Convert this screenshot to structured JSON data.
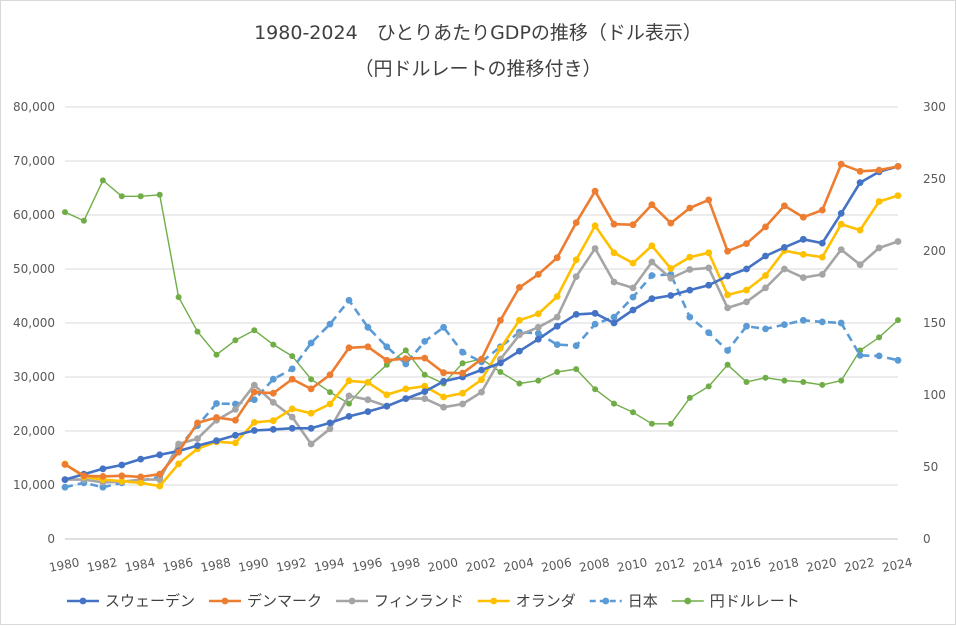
{
  "chart_data": {
    "type": "line",
    "title": "1980-2024　ひとりあたりGDPの推移（ドル表示）",
    "subtitle": "（円ドルレートの推移付き）",
    "x": [
      1980,
      1981,
      1982,
      1983,
      1984,
      1985,
      1986,
      1987,
      1988,
      1989,
      1990,
      1991,
      1992,
      1993,
      1994,
      1995,
      1996,
      1997,
      1998,
      1999,
      2000,
      2001,
      2002,
      2003,
      2004,
      2005,
      2006,
      2007,
      2008,
      2009,
      2010,
      2011,
      2012,
      2013,
      2014,
      2015,
      2016,
      2017,
      2018,
      2019,
      2020,
      2021,
      2022,
      2023,
      2024
    ],
    "x_tick_labels": [
      "1980",
      "1982",
      "1984",
      "1986",
      "1988",
      "1990",
      "1992",
      "1994",
      "1996",
      "1998",
      "2000",
      "2002",
      "2004",
      "2006",
      "2008",
      "2010",
      "2012",
      "2014",
      "2016",
      "2018",
      "2020",
      "2022",
      "2024"
    ],
    "y_left": {
      "range": [
        0,
        80000
      ],
      "ticks": [
        "0",
        "10,000",
        "20,000",
        "30,000",
        "40,000",
        "50,000",
        "60,000",
        "70,000",
        "80,000"
      ]
    },
    "y_right": {
      "range": [
        0,
        300
      ],
      "ticks": [
        "0",
        "50",
        "100",
        "150",
        "200",
        "250",
        "300"
      ]
    },
    "grid": true,
    "legend_position": "bottom",
    "series": [
      {
        "name": "スウェーデン",
        "axis": "left",
        "color": "#4472C4",
        "dash": false,
        "values": [
          11000,
          12000,
          13000,
          13700,
          14800,
          15600,
          16300,
          17300,
          18200,
          19200,
          20100,
          20300,
          20500,
          20500,
          21500,
          22700,
          23600,
          24600,
          26000,
          27300,
          29200,
          30000,
          31300,
          32600,
          34800,
          37000,
          39400,
          41600,
          41800,
          40000,
          42400,
          44500,
          45100,
          46100,
          47000,
          48700,
          50000,
          52400,
          54000,
          55500,
          54800,
          60300,
          66000,
          68000,
          69000
        ]
      },
      {
        "name": "デンマーク",
        "axis": "left",
        "color": "#ED7D31",
        "dash": false,
        "values": [
          13800,
          11700,
          11600,
          11700,
          11500,
          12000,
          16100,
          21500,
          22500,
          22000,
          27200,
          27000,
          29600,
          27800,
          30400,
          35400,
          35600,
          33100,
          33400,
          33500,
          30800,
          30700,
          33300,
          40500,
          46600,
          49000,
          52100,
          58600,
          64400,
          58300,
          58200,
          61900,
          58500,
          61300,
          62800,
          53300,
          54700,
          57800,
          61700,
          59600,
          60900,
          69400,
          68100,
          68300,
          69000
        ]
      },
      {
        "name": "フィンランド",
        "axis": "left",
        "color": "#A5A5A5",
        "dash": false,
        "values": [
          11000,
          11000,
          10500,
          10600,
          11000,
          11000,
          17600,
          18600,
          22000,
          24000,
          28500,
          25300,
          22600,
          17600,
          20400,
          26500,
          25800,
          24600,
          26000,
          26000,
          24400,
          25000,
          27200,
          33300,
          37800,
          39200,
          41100,
          48600,
          53800,
          47600,
          46500,
          51300,
          48300,
          49900,
          50200,
          42800,
          43900,
          46500,
          50000,
          48400,
          49000,
          53600,
          50800,
          53900,
          55100
        ]
      },
      {
        "name": "オランダ",
        "axis": "left",
        "color": "#FFC000",
        "dash": false,
        "values": [
          13900,
          11500,
          11000,
          10700,
          10400,
          9800,
          13900,
          16700,
          18000,
          17800,
          21600,
          21900,
          24100,
          23300,
          25000,
          29300,
          29000,
          26700,
          27800,
          28300,
          26300,
          27000,
          29500,
          35300,
          40500,
          41700,
          44900,
          51700,
          58000,
          53000,
          51100,
          54300,
          50100,
          52200,
          53000,
          45200,
          46100,
          48800,
          53400,
          52700,
          52200,
          58300,
          57200,
          62500,
          63600
        ]
      },
      {
        "name": "日本",
        "axis": "left",
        "color": "#5B9BD5",
        "dash": true,
        "values": [
          9600,
          10400,
          9600,
          10400,
          10800,
          11500,
          17000,
          21000,
          25100,
          25000,
          25800,
          29600,
          31500,
          36300,
          39800,
          44200,
          39200,
          35600,
          32400,
          36600,
          39200,
          34600,
          32800,
          35600,
          38300,
          38100,
          36000,
          35800,
          39800,
          41100,
          44800,
          48800,
          49000,
          41100,
          38200,
          34900,
          39400,
          38900,
          39700,
          40500,
          40200,
          40000,
          34000,
          33900,
          33100
        ]
      },
      {
        "name": "円ドルレート",
        "axis": "right",
        "color": "#70AD47",
        "dash": false,
        "values": [
          227,
          221,
          249,
          238,
          238,
          239,
          168,
          144,
          128,
          138,
          145,
          135,
          127,
          111,
          102,
          94,
          109,
          121,
          131,
          114,
          108,
          122,
          125,
          116,
          108,
          110,
          116,
          118,
          104,
          94,
          88,
          80,
          80,
          98,
          106,
          121,
          109,
          112,
          110,
          109,
          107,
          110,
          131,
          140,
          152
        ]
      }
    ]
  }
}
